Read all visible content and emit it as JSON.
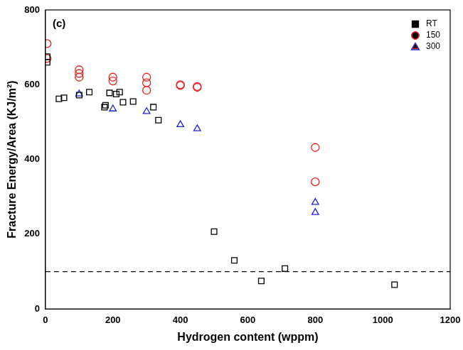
{
  "chart_data": {
    "type": "scatter",
    "x_label": "Hydrogen content (wppm)",
    "y_label": "Fracture Energy/Area (KJ/m²)",
    "annotations": [
      {
        "text": "(c)"
      }
    ],
    "xlim": [
      0,
      1200
    ],
    "xticks": [
      0,
      200,
      400,
      600,
      800,
      1000,
      1200
    ],
    "ylim": [
      0,
      800
    ],
    "yticks": [
      0,
      200,
      400,
      600,
      800
    ],
    "grid": false,
    "legend": "upper right",
    "series": [
      {
        "name": "RT",
        "color": "#000000",
        "marker": "square",
        "x": [
          5,
          5,
          40,
          55,
          100,
          130,
          175,
          178,
          190,
          210,
          220,
          230,
          260,
          320,
          335,
          500,
          560,
          640,
          710,
          1035
        ],
        "values": [
          675,
          660,
          562,
          565,
          572,
          580,
          540,
          545,
          578,
          575,
          580,
          553,
          555,
          540,
          505,
          207,
          130,
          75,
          108,
          65
        ]
      },
      {
        "name": "150",
        "color": "#e8201e",
        "marker": "circle",
        "x": [
          5,
          5,
          100,
          100,
          100,
          200,
          200,
          300,
          300,
          300,
          400,
          400,
          450,
          450,
          800,
          800
        ],
        "values": [
          710,
          670,
          640,
          630,
          620,
          620,
          610,
          620,
          605,
          585,
          600,
          598,
          595,
          593,
          432,
          340
        ]
      },
      {
        "name": "300",
        "color": "#2020e0",
        "marker": "triangle",
        "x": [
          100,
          200,
          300,
          400,
          450,
          800,
          800
        ],
        "values": [
          575,
          535,
          528,
          493,
          482,
          285,
          258
        ]
      }
    ],
    "reference_lines": [
      {
        "y": 100,
        "color": "#000000",
        "line_style": "dashed"
      }
    ]
  }
}
